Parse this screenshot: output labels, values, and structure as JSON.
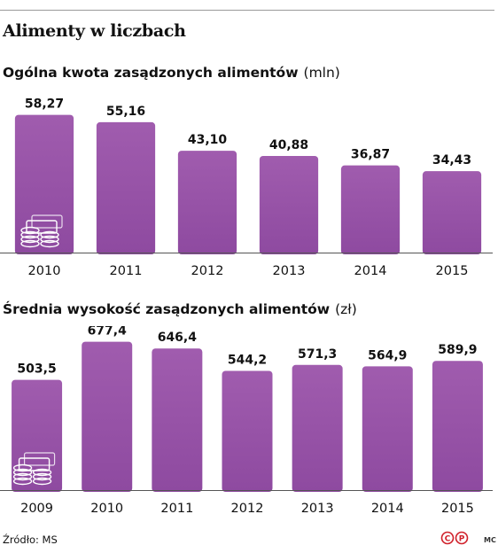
{
  "title": "Alimenty w liczbach",
  "chart1": {
    "subtitle": "Ogólna kwota zasądzonych alimentów",
    "unit": "(mln)"
  },
  "chart2": {
    "subtitle": "Średnia wysokość zasądzonych alimentów",
    "unit": "(zł)"
  },
  "chart_data": [
    {
      "type": "bar",
      "title": "Ogólna kwota zasądzonych alimentów",
      "ylabel": "(mln)",
      "categories": [
        "2010",
        "2011",
        "2012",
        "2013",
        "2014",
        "2015"
      ],
      "values": [
        58.27,
        55.16,
        43.1,
        40.88,
        36.87,
        34.43
      ],
      "labels": [
        "58,27",
        "55,16",
        "43,10",
        "40,88",
        "36,87",
        "34,43"
      ],
      "ylim": [
        0,
        60
      ],
      "grid": false,
      "bar_color": "#a05cae",
      "icon": "money-stack-icon"
    },
    {
      "type": "bar",
      "title": "Średnia wysokość zasądzonych alimentów",
      "ylabel": "(zł)",
      "categories": [
        "2009",
        "2010",
        "2011",
        "2012",
        "2013",
        "2014",
        "2015"
      ],
      "values": [
        503.5,
        677.4,
        646.4,
        544.2,
        571.3,
        564.9,
        589.9
      ],
      "labels": [
        "503,5",
        "677,4",
        "646,4",
        "544,2",
        "571,3",
        "564,9",
        "589,9"
      ],
      "ylim": [
        0,
        700
      ],
      "grid": false,
      "bar_color": "#a05cae",
      "icon": "coins-and-banknotes-icon"
    }
  ],
  "source": "Źródło: MS",
  "author": "MC",
  "logo": "copyright-publisher-logo",
  "colors": {
    "bar_top": "#a05cae",
    "bar_bottom": "#8e4aa0",
    "axis": "#555555"
  }
}
